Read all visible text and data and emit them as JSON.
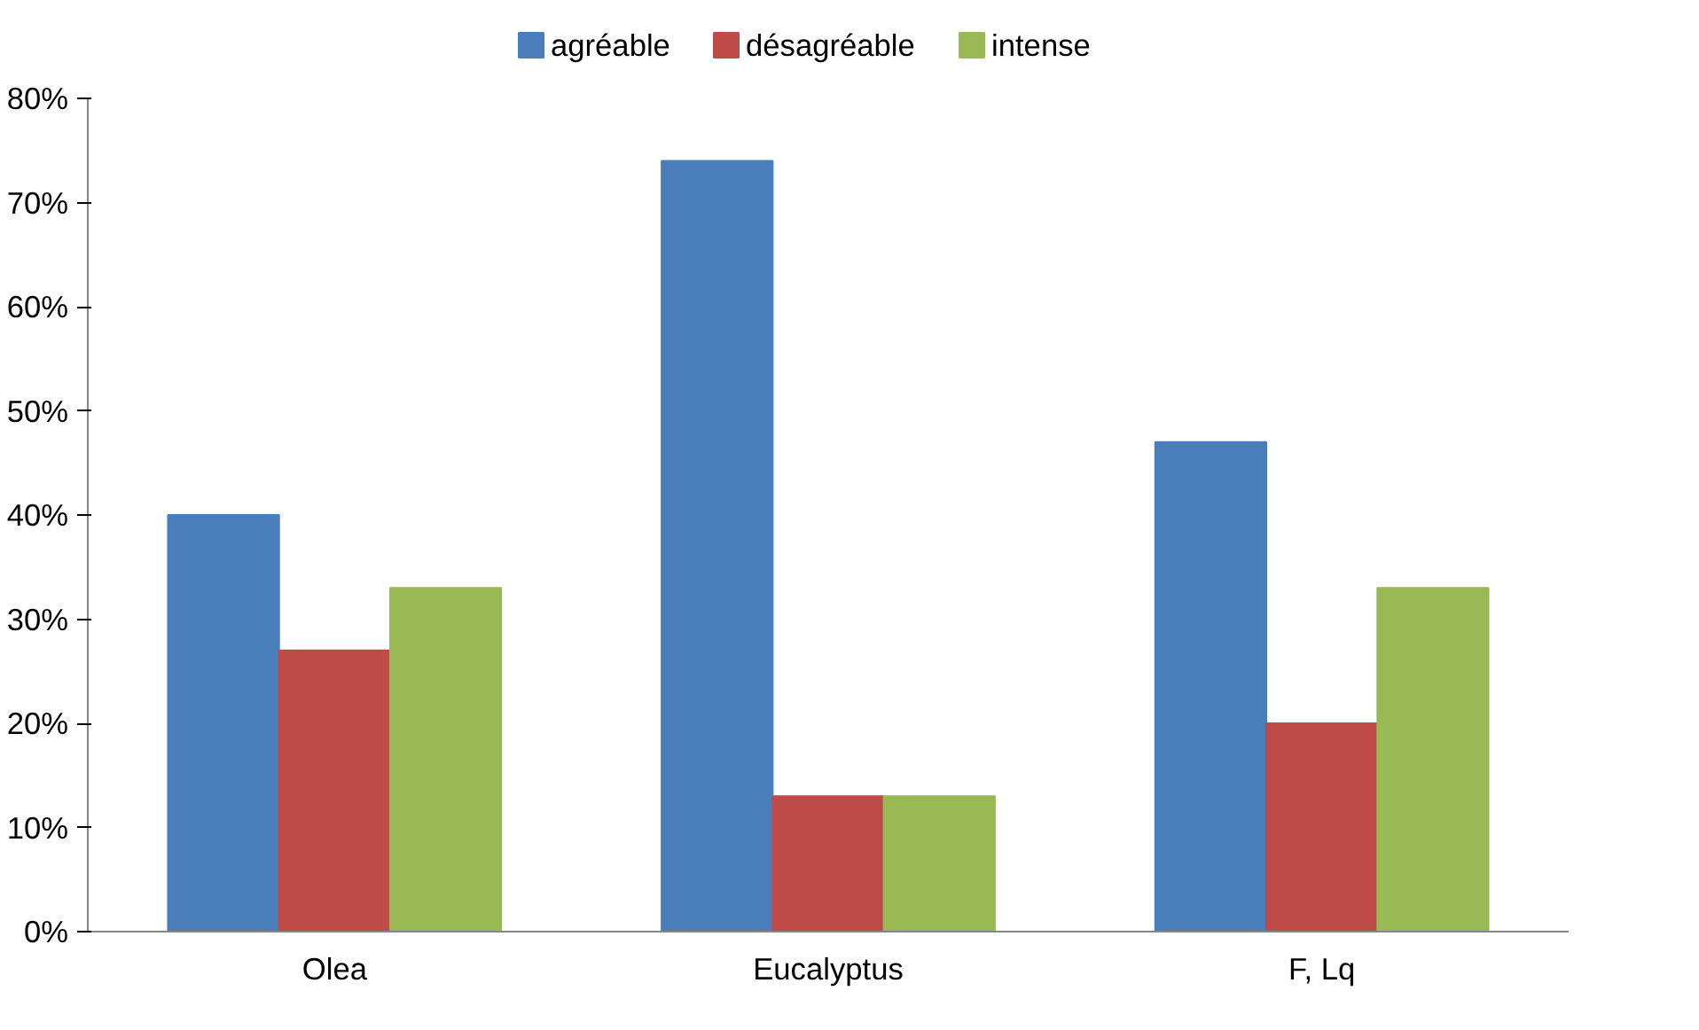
{
  "chart_data": {
    "type": "bar",
    "categories": [
      "Olea",
      "Eucalyptus",
      "F, Lq"
    ],
    "series": [
      {
        "name": "agréable",
        "color": "#4a7ebb",
        "values": [
          40,
          74,
          47
        ]
      },
      {
        "name": "désagréable",
        "color": "#be4b48",
        "values": [
          27,
          13,
          20
        ]
      },
      {
        "name": "intense",
        "color": "#98b954",
        "values": [
          33,
          13,
          33
        ]
      }
    ],
    "ylim": [
      0,
      80
    ],
    "yticks": [
      {
        "value": 0,
        "label": "0%"
      },
      {
        "value": 10,
        "label": "10%"
      },
      {
        "value": 20,
        "label": "20%"
      },
      {
        "value": 30,
        "label": "30%"
      },
      {
        "value": 40,
        "label": "40%"
      },
      {
        "value": 50,
        "label": "50%"
      },
      {
        "value": 60,
        "label": "60%"
      },
      {
        "value": 70,
        "label": "70%"
      },
      {
        "value": 80,
        "label": "80%"
      }
    ],
    "grid": false,
    "legend": "top"
  }
}
